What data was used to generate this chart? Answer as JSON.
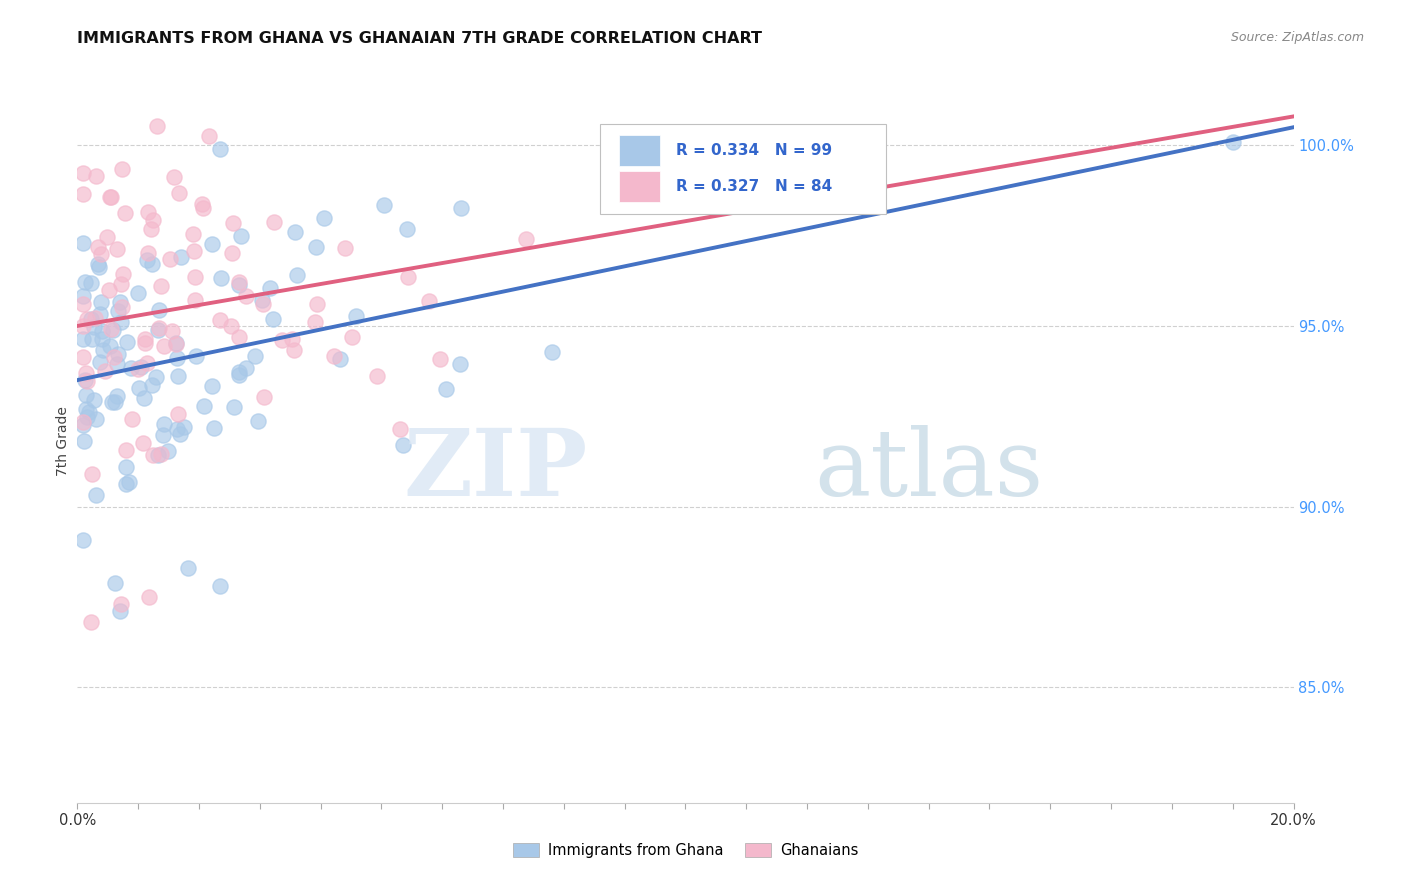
{
  "title": "IMMIGRANTS FROM GHANA VS GHANAIAN 7TH GRADE CORRELATION CHART",
  "source": "Source: ZipAtlas.com",
  "ylabel": "7th Grade",
  "ytick_labels": [
    "85.0%",
    "90.0%",
    "95.0%",
    "100.0%"
  ],
  "ytick_values": [
    0.85,
    0.9,
    0.95,
    1.0
  ],
  "legend_label1": "Immigrants from Ghana",
  "legend_label2": "Ghanaians",
  "R1": 0.334,
  "N1": 99,
  "R2": 0.327,
  "N2": 84,
  "color_blue": "#a8c8e8",
  "color_pink": "#f4b8cc",
  "line_color_blue": "#4472c4",
  "line_color_pink": "#e06080",
  "xmin": 0.0,
  "xmax": 0.2,
  "ymin": 0.818,
  "ymax": 1.018,
  "blue_line_x0": 0.0,
  "blue_line_y0": 0.935,
  "blue_line_x1": 0.2,
  "blue_line_y1": 1.005,
  "pink_line_x0": 0.0,
  "pink_line_y0": 0.95,
  "pink_line_x1": 0.2,
  "pink_line_y1": 1.008
}
